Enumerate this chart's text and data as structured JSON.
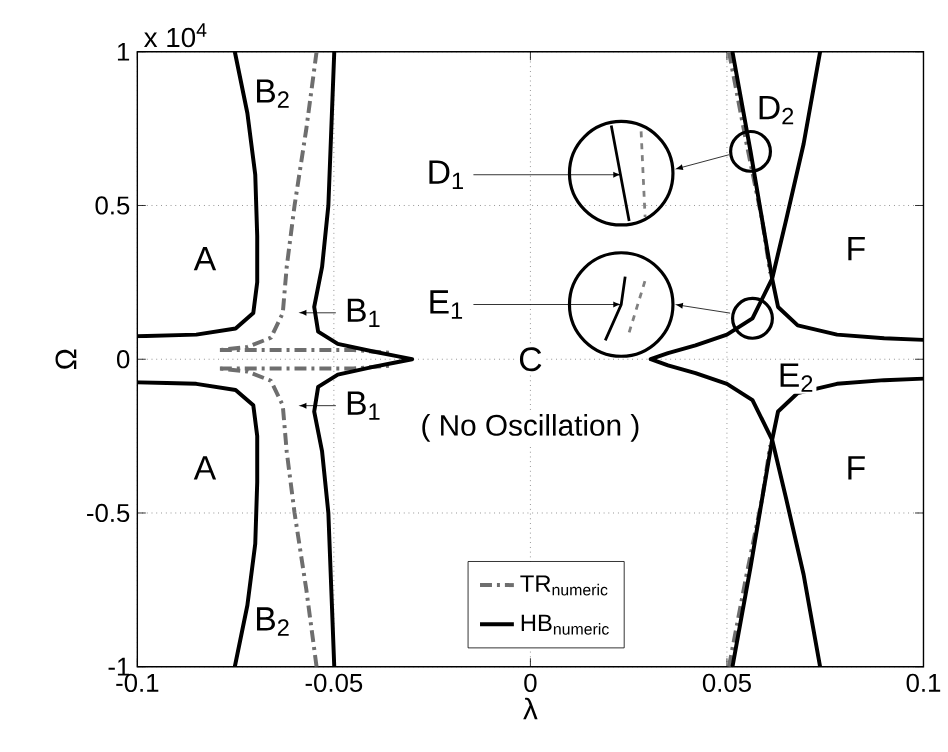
{
  "chart_data": {
    "type": "line",
    "xlabel": "λ",
    "ylabel": "Ω",
    "xlim": [
      -0.1,
      0.1
    ],
    "ylim": [
      -1,
      1
    ],
    "xticks": [
      -0.1,
      -0.05,
      0,
      0.05,
      0.1
    ],
    "yticks": [
      -1,
      -0.5,
      0,
      0.5,
      1
    ],
    "grid": true,
    "legend": "bottom",
    "marker": "none",
    "series": [
      {
        "name": "TR$_{numeric}$",
        "color": "#6e6e6e",
        "line_style": "dashed",
        "x": [
          -0.0544,
          -0.057,
          -0.06,
          -0.062,
          -0.063,
          -0.066,
          -0.072,
          -0.079
        ],
        "values": [
          1,
          0.75,
          0.5,
          0.3,
          0.15,
          0.07,
          0.04,
          0.03
        ]
      },
      {
        "color": "#6e6e6e",
        "line_style": "dashed",
        "x": [
          -0.0544,
          -0.057,
          -0.06,
          -0.062,
          -0.063,
          -0.066,
          -0.072,
          -0.079
        ],
        "values": [
          -1,
          -0.75,
          -0.5,
          -0.3,
          -0.15,
          -0.07,
          -0.04,
          -0.03
        ]
      },
      {
        "color": "#6e6e6e",
        "line_style": "dashed",
        "x": [
          -0.079,
          -0.06,
          -0.045,
          -0.035
        ],
        "values": [
          0.03,
          0.03,
          0.03,
          0.02
        ]
      },
      {
        "color": "#6e6e6e",
        "line_style": "dashed",
        "x": [
          -0.079,
          -0.06,
          -0.045,
          -0.035
        ],
        "values": [
          -0.03,
          -0.03,
          -0.03,
          -0.02
        ]
      },
      {
        "color": "#6e6e6e",
        "line_style": "dashed",
        "x": [
          0.0505,
          0.055,
          0.059,
          0.061
        ],
        "values": [
          1,
          0.7,
          0.45,
          0.28
        ]
      },
      {
        "color": "#6e6e6e",
        "line_style": "dashed",
        "x": [
          0.0505,
          0.055,
          0.059,
          0.061
        ],
        "values": [
          -1,
          -0.7,
          -0.45,
          -0.28
        ]
      },
      {
        "name": "HB$_{numeric}$",
        "color": "#000000",
        "line_style": "solid",
        "x": [
          -0.0752,
          -0.072,
          -0.07,
          -0.0695,
          -0.0695,
          -0.0705,
          -0.075,
          -0.085,
          -0.1
        ],
        "values": [
          1,
          0.8,
          0.6,
          0.4,
          0.25,
          0.15,
          0.1,
          0.08,
          0.075
        ]
      },
      {
        "color": "#000000",
        "line_style": "solid",
        "x": [
          -0.0752,
          -0.072,
          -0.07,
          -0.0695,
          -0.0695,
          -0.0705,
          -0.075,
          -0.085,
          -0.1
        ],
        "values": [
          -1,
          -0.8,
          -0.6,
          -0.4,
          -0.25,
          -0.15,
          -0.1,
          -0.08,
          -0.075
        ]
      },
      {
        "color": "#000000",
        "line_style": "solid",
        "x": [
          -0.0499,
          -0.0505,
          -0.0514,
          -0.053,
          -0.055,
          -0.054,
          -0.049,
          -0.04,
          -0.034,
          -0.0301,
          -0.034,
          -0.04,
          -0.049,
          -0.054,
          -0.055,
          -0.053,
          -0.0514,
          -0.0505,
          -0.0499
        ],
        "values": [
          1,
          0.8,
          0.5,
          0.3,
          0.17,
          0.09,
          0.05,
          0.025,
          0.01,
          0,
          -0.01,
          -0.025,
          -0.05,
          -0.09,
          -0.17,
          -0.3,
          -0.5,
          -0.8,
          -1
        ]
      },
      {
        "color": "#000000",
        "line_style": "solid",
        "x": [
          0.0514,
          0.056,
          0.059,
          0.0615,
          0.0565,
          0.05,
          0.042,
          0.035,
          0.0306,
          0.035,
          0.042,
          0.05,
          0.0565,
          0.0615,
          0.059,
          0.056,
          0.0514
        ],
        "values": [
          1,
          0.676,
          0.45,
          0.262,
          0.133,
          0.08,
          0.045,
          0.02,
          0,
          -0.02,
          -0.045,
          -0.08,
          -0.133,
          -0.262,
          -0.45,
          -0.676,
          -1
        ]
      },
      {
        "color": "#000000",
        "line_style": "solid",
        "x": [
          0.0737,
          0.0695,
          0.065,
          0.0615,
          0.063,
          0.068,
          0.078,
          0.09,
          0.1
        ],
        "values": [
          1,
          0.7,
          0.45,
          0.262,
          0.17,
          0.11,
          0.08,
          0.068,
          0.063
        ]
      },
      {
        "color": "#000000",
        "line_style": "solid",
        "x": [
          0.0737,
          0.0695,
          0.065,
          0.0615,
          0.063,
          0.068,
          0.078,
          0.09,
          0.1
        ],
        "values": [
          -1,
          -0.7,
          -0.45,
          -0.262,
          -0.17,
          -0.11,
          -0.08,
          -0.068,
          -0.063
        ]
      }
    ],
    "annotations": [
      "x 10$^{4}$",
      {
        "text": "A",
        "x": -0.0828,
        "y": 0.327
      },
      {
        "text": "A",
        "x": -0.0828,
        "y": -0.353
      },
      {
        "text": "B$_{2}$",
        "x": -0.0656,
        "y": 0.864
      },
      {
        "text": "B$_{2}$",
        "x": -0.0656,
        "y": -0.853
      },
      {
        "text": "B$_{1}$",
        "x": -0.0425,
        "y": 0.151
      },
      {
        "text": "B$_{1}$",
        "x": -0.0425,
        "y": -0.151
      },
      {
        "text": "C",
        "x": 0,
        "y": 0
      },
      "( No Oscillation )",
      {
        "text": "D$_{1}$",
        "x": -0.0215,
        "y": 0.6
      },
      {
        "text": "E$_{1}$",
        "x": -0.0215,
        "y": 0.178
      },
      {
        "text": "D$_{2}$",
        "x": 0.0625,
        "y": 0.81
      },
      {
        "text": "E$_{2}$",
        "x": 0.0676,
        "y": -0.06
      },
      {
        "text": "F",
        "x": 0.0828,
        "y": 0.36
      },
      {
        "text": "F",
        "x": 0.0828,
        "y": -0.353
      }
    ]
  }
}
